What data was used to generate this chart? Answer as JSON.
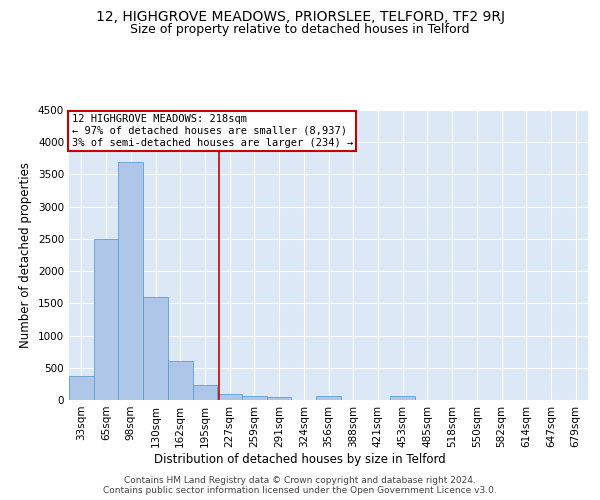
{
  "title": "12, HIGHGROVE MEADOWS, PRIORSLEE, TELFORD, TF2 9RJ",
  "subtitle": "Size of property relative to detached houses in Telford",
  "xlabel": "Distribution of detached houses by size in Telford",
  "ylabel": "Number of detached properties",
  "bin_labels": [
    "33sqm",
    "65sqm",
    "98sqm",
    "130sqm",
    "162sqm",
    "195sqm",
    "227sqm",
    "259sqm",
    "291sqm",
    "324sqm",
    "356sqm",
    "388sqm",
    "421sqm",
    "453sqm",
    "485sqm",
    "518sqm",
    "550sqm",
    "582sqm",
    "614sqm",
    "647sqm",
    "679sqm"
  ],
  "bar_heights": [
    370,
    2500,
    3700,
    1600,
    600,
    240,
    100,
    60,
    50,
    0,
    60,
    0,
    0,
    60,
    0,
    0,
    0,
    0,
    0,
    0,
    0
  ],
  "bar_color": "#aec6e8",
  "bar_edge_color": "#5a9fd4",
  "ylim": [
    0,
    4500
  ],
  "yticks": [
    0,
    500,
    1000,
    1500,
    2000,
    2500,
    3000,
    3500,
    4000,
    4500
  ],
  "vline_x_index": 5.55,
  "vline_color": "#cc0000",
  "annotation_text": "12 HIGHGROVE MEADOWS: 218sqm\n← 97% of detached houses are smaller (8,937)\n3% of semi-detached houses are larger (234) →",
  "annotation_box_color": "#ffffff",
  "annotation_box_edge": "#cc0000",
  "footer_text": "Contains HM Land Registry data © Crown copyright and database right 2024.\nContains public sector information licensed under the Open Government Licence v3.0.",
  "background_color": "#dce8f5",
  "grid_color": "#ffffff",
  "fig_background": "#ffffff",
  "title_fontsize": 10,
  "subtitle_fontsize": 9,
  "axis_label_fontsize": 8.5,
  "tick_fontsize": 7.5,
  "footer_fontsize": 6.5,
  "annotation_fontsize": 7.5
}
